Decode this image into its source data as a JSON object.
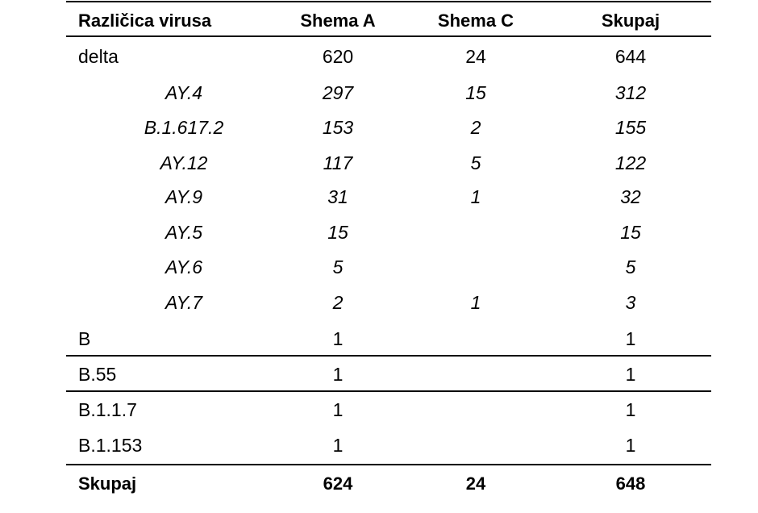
{
  "table": {
    "header": [
      "Različica virusa",
      "Shema A",
      "Shema C",
      "Skupaj"
    ],
    "rows": [
      [
        "delta",
        620,
        24,
        644
      ],
      [
        "AY.4",
        297,
        15,
        312
      ],
      [
        "B.1.617.2",
        153,
        2,
        155
      ],
      [
        "AY.12",
        117,
        5,
        122
      ],
      [
        "AY.9",
        31,
        1,
        32
      ],
      [
        "AY.5",
        15,
        null,
        15
      ],
      [
        "AY.6",
        5,
        null,
        5
      ],
      [
        "AY.7",
        2,
        1,
        3
      ],
      [
        "B",
        1,
        null,
        1
      ],
      [
        "B.55",
        1,
        null,
        1
      ],
      [
        "B.1.1.7",
        1,
        null,
        1
      ],
      [
        "B.1.153",
        1,
        null,
        1
      ],
      [
        "Skupaj",
        624,
        24,
        648
      ]
    ]
  }
}
